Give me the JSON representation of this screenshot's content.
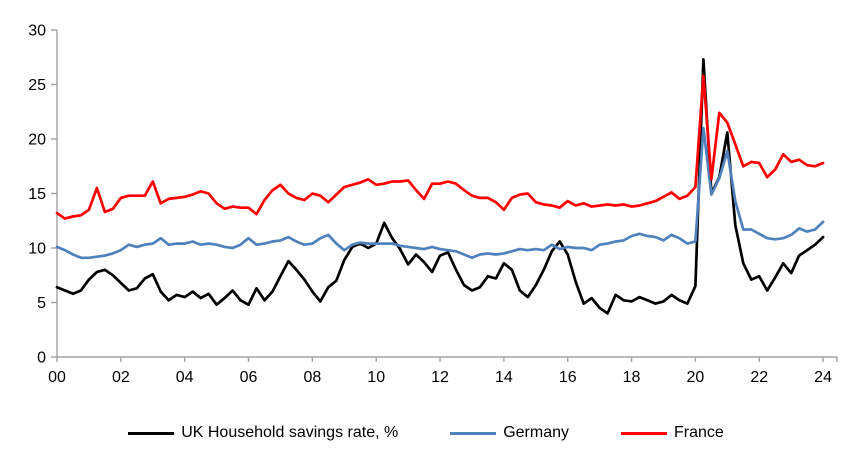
{
  "chart_data": {
    "type": "line",
    "title": "",
    "x_start": 2000,
    "x_step_years": 0.25,
    "x_axis": {
      "tick_years": [
        2000,
        2002,
        2004,
        2006,
        2008,
        2010,
        2012,
        2014,
        2016,
        2018,
        2020,
        2022,
        2024
      ],
      "tick_labels": [
        "00",
        "02",
        "04",
        "06",
        "08",
        "10",
        "12",
        "14",
        "16",
        "18",
        "20",
        "22",
        "24"
      ]
    },
    "y_axis": {
      "min": 0,
      "max": 30,
      "ticks": [
        0,
        5,
        10,
        15,
        20,
        25,
        30
      ],
      "tick_labels": [
        "0",
        "5",
        "10",
        "15",
        "20",
        "25",
        "30"
      ]
    },
    "grid": false,
    "axis_color": "#a3a3a3",
    "legend_position": "bottom",
    "series": [
      {
        "id": "uk",
        "name": "UK Household savings rate, %",
        "color": "#000000",
        "values": [
          6.4,
          6.1,
          5.8,
          6.1,
          7.1,
          7.8,
          8.0,
          7.5,
          6.8,
          6.1,
          6.3,
          7.2,
          7.6,
          6.0,
          5.2,
          5.7,
          5.5,
          6.0,
          5.4,
          5.8,
          4.8,
          5.4,
          6.1,
          5.2,
          4.8,
          6.3,
          5.2,
          6.0,
          7.4,
          8.8,
          8.0,
          7.1,
          6.0,
          5.1,
          6.4,
          7.0,
          8.9,
          10.1,
          10.4,
          10.0,
          10.4,
          12.3,
          10.9,
          9.9,
          8.5,
          9.4,
          8.7,
          7.8,
          9.3,
          9.6,
          8.0,
          6.6,
          6.1,
          6.4,
          7.4,
          7.2,
          8.6,
          8.0,
          6.1,
          5.5,
          6.6,
          8.0,
          9.7,
          10.6,
          9.4,
          6.9,
          4.9,
          5.4,
          4.5,
          4.0,
          5.7,
          5.2,
          5.1,
          5.5,
          5.2,
          4.9,
          5.1,
          5.7,
          5.2,
          4.9,
          6.5,
          27.3,
          15.0,
          16.5,
          20.6,
          12.1,
          8.6,
          7.1,
          7.4,
          6.1,
          7.3,
          8.6,
          7.7,
          9.3,
          9.8,
          10.3,
          11.0
        ]
      },
      {
        "id": "germany",
        "name": "Germany",
        "color": "#4f81bd",
        "values": [
          10.1,
          9.8,
          9.4,
          9.1,
          9.1,
          9.2,
          9.3,
          9.5,
          9.8,
          10.3,
          10.1,
          10.3,
          10.4,
          10.9,
          10.3,
          10.4,
          10.4,
          10.6,
          10.3,
          10.4,
          10.3,
          10.1,
          10.0,
          10.3,
          10.9,
          10.3,
          10.4,
          10.6,
          10.7,
          11.0,
          10.6,
          10.3,
          10.4,
          10.9,
          11.2,
          10.4,
          9.8,
          10.3,
          10.5,
          10.4,
          10.4,
          10.4,
          10.4,
          10.2,
          10.1,
          10.0,
          9.9,
          10.1,
          9.9,
          9.8,
          9.7,
          9.4,
          9.1,
          9.4,
          9.5,
          9.4,
          9.5,
          9.7,
          9.9,
          9.8,
          9.9,
          9.8,
          10.3,
          9.9,
          10.1,
          10.0,
          10.0,
          9.8,
          10.3,
          10.4,
          10.6,
          10.7,
          11.1,
          11.3,
          11.1,
          11.0,
          10.7,
          11.2,
          10.9,
          10.4,
          10.6,
          21.0,
          14.9,
          16.4,
          18.9,
          14.3,
          11.7,
          11.7,
          11.3,
          10.9,
          10.8,
          10.9,
          11.2,
          11.8,
          11.5,
          11.7,
          12.4
        ]
      },
      {
        "id": "france",
        "name": "France",
        "color": "#ff0000",
        "values": [
          13.2,
          12.7,
          12.9,
          13.0,
          13.5,
          15.5,
          13.3,
          13.6,
          14.6,
          14.8,
          14.8,
          14.8,
          16.1,
          14.1,
          14.5,
          14.6,
          14.7,
          14.9,
          15.2,
          15.0,
          14.1,
          13.6,
          13.8,
          13.7,
          13.7,
          13.1,
          14.4,
          15.3,
          15.8,
          15.0,
          14.6,
          14.4,
          15.0,
          14.8,
          14.2,
          14.9,
          15.6,
          15.8,
          16.0,
          16.3,
          15.8,
          15.9,
          16.1,
          16.1,
          16.2,
          15.3,
          14.5,
          15.9,
          15.9,
          16.1,
          15.9,
          15.3,
          14.8,
          14.6,
          14.6,
          14.2,
          13.5,
          14.6,
          14.9,
          15.0,
          14.2,
          14.0,
          13.9,
          13.7,
          14.3,
          13.9,
          14.1,
          13.8,
          13.9,
          14.0,
          13.9,
          14.0,
          13.8,
          13.9,
          14.1,
          14.3,
          14.7,
          15.1,
          14.5,
          14.8,
          15.6,
          25.8,
          16.3,
          22.4,
          21.5,
          19.5,
          17.5,
          17.9,
          17.8,
          16.5,
          17.2,
          18.6,
          17.9,
          18.1,
          17.6,
          17.5,
          17.8
        ]
      }
    ]
  },
  "legend": {
    "entries": [
      {
        "label": "UK Household savings rate, %"
      },
      {
        "label": "Germany"
      },
      {
        "label": "France"
      }
    ]
  }
}
